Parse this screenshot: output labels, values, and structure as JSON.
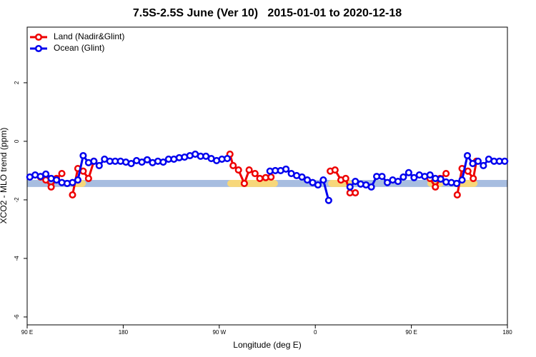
{
  "chart_data": {
    "type": "line",
    "title": "7.5S-2.5S June (Ver 10)   2015-01-01 to 2020-12-18",
    "xlabel": "Longitude (deg E)",
    "ylabel": "XCO2 - MLO trend (ppm)",
    "xlim": [
      90,
      540
    ],
    "ylim": [
      -6.27,
      3.9
    ],
    "xticks": [
      {
        "value": 90,
        "label": "90 E"
      },
      180,
      {
        "value": 270,
        "label": "90 W"
      },
      {
        "value": 360,
        "label": "0"
      },
      {
        "value": 450,
        "label": "90 E"
      },
      {
        "value": 540,
        "label": "180"
      }
    ],
    "yticks": [
      2,
      0,
      -2,
      -4,
      -6
    ],
    "legend": "top-left",
    "reference_band": {
      "ylim": [
        -1.56,
        -1.32
      ],
      "color": "#a7bde0"
    },
    "highlight_regions": {
      "color": "#f7d77a",
      "xranges": [
        [
          130,
          145
        ],
        [
          277.5,
          325
        ],
        [
          372,
          395
        ],
        [
          465,
          480
        ],
        [
          493,
          512
        ]
      ]
    },
    "series": [
      {
        "name": "Land (Nadir&Glint)",
        "color": "#ee0000",
        "x": [
          102.5,
          107.5,
          112.5,
          117.5,
          122.5,
          127.5,
          132.5,
          137.5,
          142.5,
          147.5,
          152.5,
          255,
          280,
          283,
          288,
          293.5,
          298,
          303.5,
          308,
          313.5,
          318.5,
          340,
          374,
          378.5,
          384,
          388.5,
          392.5,
          397.5,
          450,
          467.5,
          472.5,
          477,
          482.5,
          487,
          493,
          497.5,
          503,
          508,
          511
        ],
        "values": [
          -1.22,
          -1.32,
          -1.56,
          -1.27,
          -1.1,
          null,
          -1.83,
          -0.93,
          -1.02,
          -1.27,
          -0.68,
          null,
          -0.44,
          -0.83,
          -0.98,
          -1.44,
          -0.98,
          -1.1,
          -1.27,
          -1.24,
          -1.22,
          null,
          -1.02,
          -0.98,
          -1.32,
          -1.27,
          -1.76,
          -1.76,
          null,
          -1.27,
          -1.56,
          -1.27,
          -1.1,
          null,
          -1.83,
          -0.93,
          -1.02,
          -1.27,
          -0.68
        ]
      },
      {
        "name": "Ocean (Glint)",
        "color": "#0000ee",
        "x": [
          92.5,
          97.5,
          102.5,
          107.5,
          112.5,
          117.5,
          122.5,
          127.5,
          132.5,
          137.5,
          142.5,
          147.5,
          152.5,
          157.5,
          162.5,
          167.5,
          172.5,
          177.5,
          182.5,
          187.5,
          192.5,
          197.5,
          202.5,
          207.5,
          212.5,
          217.5,
          222.5,
          227.5,
          232.5,
          237.5,
          242.5,
          247.5,
          252.5,
          257.5,
          262.5,
          267.5,
          272.5,
          277.5,
          282.5,
          317.5,
          322.5,
          327.5,
          332.5,
          337.5,
          342.5,
          347.5,
          352.5,
          357.5,
          362.5,
          367.5,
          372.5,
          377.5,
          392.5,
          397.5,
          402.5,
          407.5,
          412.5,
          417.5,
          422.5,
          427.5,
          432.5,
          437.5,
          442.5,
          447.5,
          452.5,
          457.5,
          462.5,
          467.5,
          472.5,
          477.5,
          482.5,
          487.5,
          492.5,
          497.5,
          502.5,
          507.5,
          512.5,
          517.5,
          522.5,
          527.5,
          532.5,
          537.5
        ],
        "values": [
          -1.22,
          -1.15,
          -1.2,
          -1.12,
          -1.27,
          -1.32,
          -1.41,
          -1.44,
          -1.41,
          -1.32,
          -0.49,
          -0.73,
          -0.68,
          -0.83,
          -0.61,
          -0.68,
          -0.68,
          -0.68,
          -0.71,
          -0.76,
          -0.66,
          -0.71,
          -0.63,
          -0.73,
          -0.68,
          -0.71,
          -0.61,
          -0.61,
          -0.56,
          -0.54,
          -0.49,
          -0.44,
          -0.51,
          -0.51,
          -0.59,
          -0.66,
          -0.61,
          -0.59,
          null,
          -1.02,
          -1.0,
          -1.0,
          -0.95,
          -1.1,
          -1.17,
          -1.22,
          -1.32,
          -1.41,
          -1.49,
          -1.32,
          -2.02,
          null,
          -1.56,
          -1.37,
          -1.46,
          -1.49,
          -1.56,
          -1.2,
          -1.2,
          -1.41,
          -1.32,
          -1.37,
          -1.22,
          -1.07,
          -1.24,
          -1.15,
          -1.2,
          -1.15,
          -1.27,
          -1.29,
          -1.39,
          -1.41,
          -1.44,
          -1.32,
          -0.49,
          -0.76,
          -0.68,
          -0.83,
          -0.61,
          -0.68,
          -0.68,
          -0.68
        ]
      }
    ]
  }
}
